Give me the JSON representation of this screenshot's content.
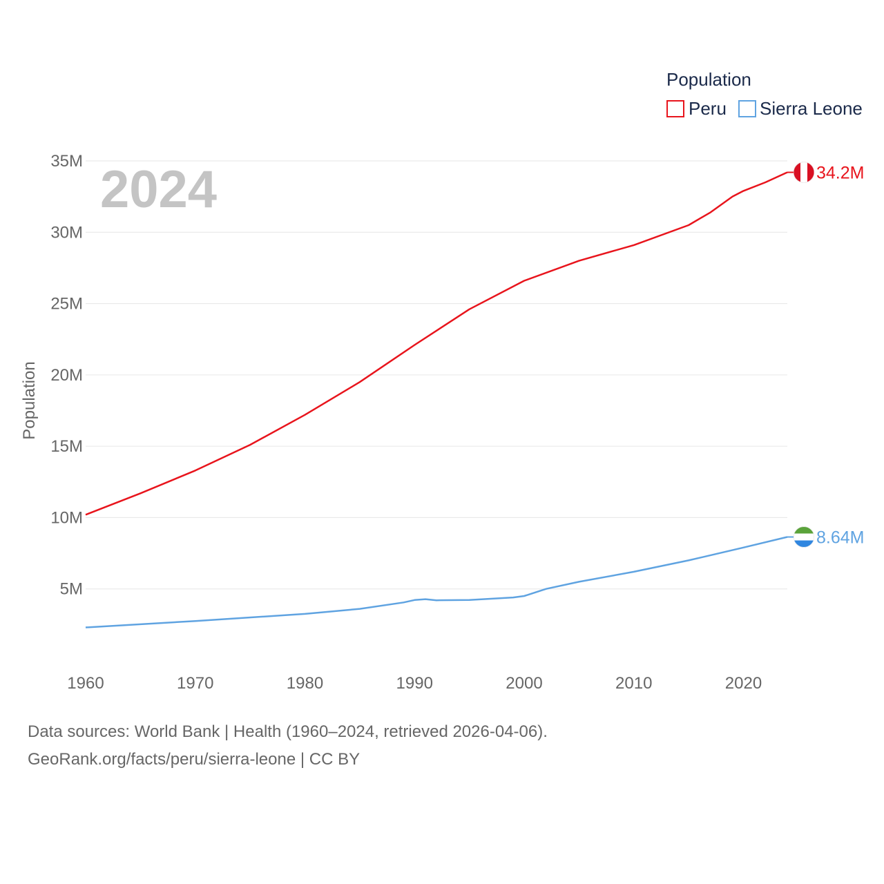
{
  "colors": {
    "peru": "#e8141c",
    "sierra_leone": "#5fa3e1",
    "grid": "#e6e6e6",
    "text": "#666666"
  },
  "chart_data": {
    "type": "line",
    "title": "",
    "legend_title": "Population",
    "year_label": "2024",
    "xlabel": "",
    "ylabel": "Population",
    "xlim": [
      1960,
      2024
    ],
    "ylim": [
      0,
      35000000
    ],
    "x_ticks": [
      1960,
      1970,
      1980,
      1990,
      2000,
      2010,
      2020
    ],
    "x_tick_labels": [
      "1960",
      "1970",
      "1980",
      "1990",
      "2000",
      "2010",
      "2020"
    ],
    "y_ticks": [
      5000000,
      10000000,
      15000000,
      20000000,
      25000000,
      30000000,
      35000000
    ],
    "y_tick_labels": [
      "5M",
      "10M",
      "15M",
      "20M",
      "25M",
      "30M",
      "35M"
    ],
    "series": [
      {
        "name": "Peru",
        "color": "#e8141c",
        "end_label": "34.2M",
        "flag": "peru-flag",
        "points": [
          [
            1960,
            10200000
          ],
          [
            1965,
            11700000
          ],
          [
            1970,
            13300000
          ],
          [
            1975,
            15100000
          ],
          [
            1980,
            17200000
          ],
          [
            1985,
            19500000
          ],
          [
            1990,
            22100000
          ],
          [
            1995,
            24600000
          ],
          [
            2000,
            26600000
          ],
          [
            2005,
            28000000
          ],
          [
            2010,
            29100000
          ],
          [
            2015,
            30500000
          ],
          [
            2017,
            31400000
          ],
          [
            2019,
            32500000
          ],
          [
            2020,
            32900000
          ],
          [
            2022,
            33500000
          ],
          [
            2024,
            34200000
          ]
        ]
      },
      {
        "name": "Sierra Leone",
        "color": "#5fa3e1",
        "end_label": "8.64M",
        "flag": "sierra-leone-flag",
        "points": [
          [
            1960,
            2300000
          ],
          [
            1970,
            2750000
          ],
          [
            1980,
            3250000
          ],
          [
            1985,
            3600000
          ],
          [
            1989,
            4050000
          ],
          [
            1990,
            4220000
          ],
          [
            1991,
            4280000
          ],
          [
            1992,
            4200000
          ],
          [
            1995,
            4220000
          ],
          [
            1999,
            4400000
          ],
          [
            2000,
            4500000
          ],
          [
            2002,
            5000000
          ],
          [
            2005,
            5500000
          ],
          [
            2010,
            6200000
          ],
          [
            2015,
            7000000
          ],
          [
            2020,
            7900000
          ],
          [
            2024,
            8640000
          ]
        ]
      }
    ]
  },
  "footer": {
    "line1": "Data sources: World Bank | Health (1960–2024, retrieved 2026-04-06).",
    "line2": "GeoRank.org/facts/peru/sierra-leone | CC BY"
  }
}
